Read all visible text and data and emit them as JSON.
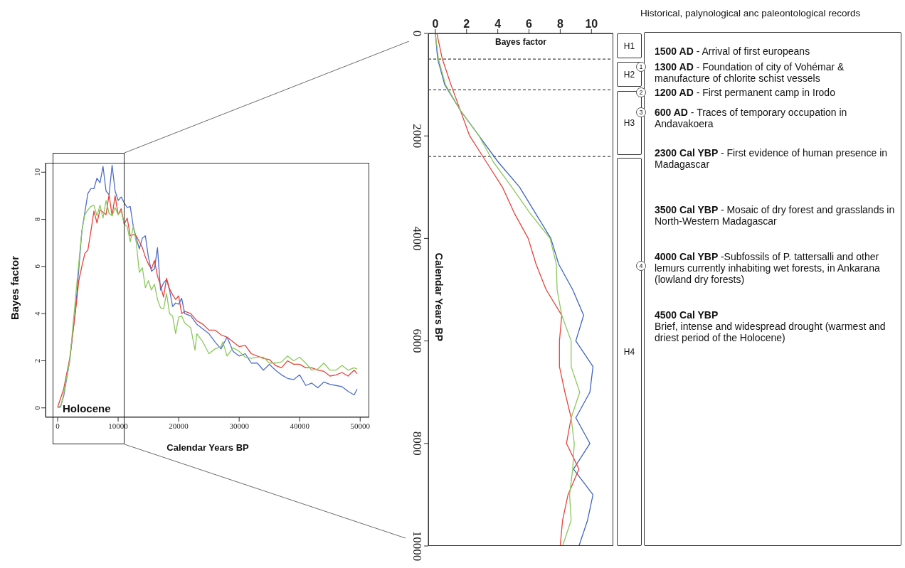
{
  "chart_data": [
    {
      "type": "line",
      "xlabel": "Calendar Years BP",
      "ylabel": "Bayes factor",
      "xlim": [
        -2000,
        51500
      ],
      "xticks": [
        0,
        10000,
        20000,
        30000,
        40000,
        50000
      ],
      "ylim": [
        -0.4,
        10.4
      ],
      "yticks": [
        0,
        2,
        4,
        6,
        8,
        10
      ],
      "grid": false,
      "annotations": [
        "Holocene"
      ],
      "series": [
        {
          "color": "#4f6ecb",
          "x": [
            0,
            500,
            1000,
            2000,
            3000,
            4000,
            4500,
            5000,
            5500,
            6000,
            6500,
            7000,
            7500,
            8000,
            8500,
            9000,
            9500,
            10000,
            10500,
            11000,
            11500,
            12000,
            12500,
            13000,
            13500,
            14000,
            14500,
            15000,
            15500,
            16000,
            16500,
            17000,
            17500,
            18000,
            18500,
            19000,
            19500,
            20000,
            20500,
            21000,
            22000,
            23000,
            24000,
            25000,
            26000,
            27000,
            28000,
            29000,
            30000,
            31000,
            32000,
            33000,
            34000,
            35000,
            36000,
            37000,
            38000,
            39000,
            40000,
            41000,
            42000,
            43000,
            44000,
            45000,
            46000,
            47000,
            48000,
            49000,
            49500
          ],
          "values": [
            0,
            0.08,
            0.5,
            2.0,
            4.3,
            7.5,
            8.3,
            9.1,
            9.3,
            9.3,
            9.75,
            9.55,
            10.25,
            9.2,
            9.05,
            10.3,
            9.2,
            8.8,
            8.95,
            8.7,
            8.5,
            8.55,
            7.7,
            7.2,
            6.75,
            7.2,
            7.3,
            6.4,
            5.8,
            5.9,
            6.8,
            5.0,
            5.3,
            5.45,
            5.0,
            4.3,
            4.45,
            4.4,
            4.65,
            4.0,
            3.9,
            3.55,
            3.35,
            3.15,
            2.8,
            2.5,
            3.0,
            2.4,
            2.2,
            2.3,
            1.9,
            1.9,
            1.6,
            1.85,
            1.6,
            1.4,
            1.25,
            1.2,
            1.4,
            0.95,
            1.05,
            0.85,
            1.1,
            1.0,
            0.95,
            0.9,
            0.7,
            0.55,
            0.8
          ]
        },
        {
          "color": "#e8433b",
          "x": [
            0,
            1000,
            2000,
            3000,
            3500,
            4000,
            4500,
            5000,
            5500,
            6000,
            6500,
            7000,
            7500,
            8000,
            8500,
            9000,
            9500,
            10000,
            10500,
            11000,
            11500,
            12000,
            12500,
            13000,
            13500,
            14000,
            14500,
            15000,
            15500,
            16000,
            16500,
            17000,
            17500,
            18000,
            18500,
            19000,
            19500,
            20000,
            20500,
            21000,
            22000,
            23000,
            24000,
            25000,
            26000,
            27000,
            28000,
            29000,
            30000,
            31000,
            32000,
            33000,
            34000,
            35000,
            36000,
            37000,
            38000,
            39000,
            40000,
            41000,
            42000,
            43000,
            44000,
            45000,
            46000,
            47000,
            48000,
            49000,
            49500
          ],
          "values": [
            0.03,
            0.8,
            2.1,
            4.2,
            5.4,
            6.0,
            6.55,
            6.7,
            7.5,
            8.35,
            7.85,
            8.4,
            8.3,
            8.2,
            9.05,
            8.15,
            9.0,
            8.2,
            8.45,
            7.8,
            8.05,
            7.3,
            7.35,
            7.3,
            7.05,
            6.8,
            6.4,
            6.1,
            5.9,
            6.25,
            5.6,
            5.2,
            4.7,
            5.5,
            5.05,
            4.8,
            4.6,
            4.75,
            4.0,
            4.1,
            4.0,
            3.7,
            3.55,
            3.3,
            3.3,
            3.1,
            3.0,
            2.8,
            2.6,
            2.65,
            2.3,
            2.2,
            2.1,
            2.05,
            1.8,
            1.7,
            2.0,
            1.85,
            1.85,
            1.7,
            1.7,
            1.6,
            1.55,
            1.35,
            1.4,
            1.5,
            1.35,
            1.6,
            1.45
          ]
        },
        {
          "color": "#8cc85e",
          "x": [
            0,
            500,
            1000,
            2000,
            3000,
            4000,
            4500,
            5000,
            5500,
            6000,
            6500,
            7000,
            7500,
            8000,
            8500,
            9000,
            9500,
            10000,
            10500,
            11000,
            11500,
            12000,
            12500,
            13000,
            13500,
            14000,
            14500,
            15000,
            15500,
            16000,
            16500,
            17000,
            17500,
            18000,
            18500,
            19000,
            19500,
            20000,
            20500,
            21000,
            22000,
            22700,
            23000,
            24000,
            25000,
            26000,
            27000,
            27300,
            28000,
            29000,
            30000,
            31000,
            32000,
            33000,
            34000,
            35000,
            36000,
            37000,
            38000,
            39000,
            40000,
            41000,
            42000,
            43000,
            44000,
            45000,
            46000,
            47000,
            48000,
            49000,
            49500
          ],
          "values": [
            0,
            0.03,
            0.6,
            2.0,
            4.8,
            7.5,
            8.2,
            8.4,
            8.55,
            8.6,
            8.15,
            8.6,
            8.05,
            8.8,
            8.25,
            8.15,
            8.5,
            8.2,
            8.35,
            7.8,
            7.7,
            7.05,
            7.7,
            7.0,
            5.75,
            5.95,
            5.1,
            5.4,
            5.0,
            5.25,
            4.6,
            4.25,
            4.2,
            4.85,
            4.0,
            3.9,
            3.15,
            3.85,
            3.9,
            3.6,
            3.4,
            2.45,
            3.15,
            2.8,
            2.3,
            2.5,
            2.6,
            2.8,
            2.2,
            2.55,
            2.4,
            2.15,
            2.1,
            2.15,
            2.15,
            1.9,
            1.9,
            1.95,
            2.2,
            2.0,
            2.15,
            1.9,
            1.6,
            1.65,
            1.9,
            1.6,
            1.6,
            1.8,
            1.6,
            1.7,
            1.65
          ]
        }
      ]
    },
    {
      "type": "line",
      "xlabel": "Bayes factor",
      "ylabel": "Calendar Years BP",
      "xlim": [
        -0.45,
        11.4
      ],
      "xticks": [
        0,
        2,
        4,
        6,
        8,
        10
      ],
      "ylim": [
        10000,
        0
      ],
      "yticks": [
        0,
        2000,
        4000,
        6000,
        8000,
        10000
      ],
      "grid": false,
      "ref_lines": [
        {
          "axis": "y",
          "value": 500,
          "line_style": "dashed"
        },
        {
          "axis": "y",
          "value": 1100,
          "line_style": "dashed"
        },
        {
          "axis": "y",
          "value": 2400,
          "line_style": "dashed"
        }
      ],
      "series": [
        {
          "color": "#3f64c0",
          "x": [
            0,
            0.15,
            0.6,
            1.6,
            2.8,
            4.0,
            5.4,
            6.4,
            7.4,
            7.9,
            8.8,
            9.5,
            9.0,
            10.1,
            9.9,
            9.0,
            9.9,
            8.85,
            10.1,
            9.75,
            9.2
          ],
          "values": [
            0,
            500,
            1000,
            1500,
            2000,
            2500,
            3000,
            3500,
            4000,
            4500,
            5000,
            5500,
            6000,
            6500,
            7000,
            7500,
            8000,
            8500,
            9000,
            9500,
            10000
          ]
        },
        {
          "color": "#e8433b",
          "x": [
            0.1,
            0.45,
            1.0,
            1.6,
            2.2,
            3.25,
            4.3,
            5.05,
            5.95,
            6.45,
            7.1,
            8.1,
            7.95,
            7.95,
            8.3,
            8.7,
            8.4,
            9.2,
            8.5,
            8.15,
            8.0
          ],
          "values": [
            0,
            500,
            1000,
            1500,
            2000,
            2500,
            3000,
            3500,
            4000,
            4500,
            5000,
            5500,
            6000,
            6500,
            7000,
            7500,
            8000,
            8500,
            9000,
            9500,
            10000
          ]
        },
        {
          "color": "#8cc85e",
          "x": [
            0,
            0.2,
            0.65,
            1.6,
            2.8,
            3.7,
            4.9,
            6.05,
            7.35,
            7.75,
            7.8,
            8.1,
            8.7,
            8.7,
            9.25,
            8.7,
            8.9,
            8.8,
            8.6,
            8.7,
            8.15
          ],
          "values": [
            0,
            500,
            1000,
            1500,
            2000,
            2500,
            3000,
            3500,
            4000,
            4500,
            5000,
            5500,
            6000,
            6500,
            7000,
            7500,
            8000,
            8500,
            9000,
            9500,
            10000
          ]
        }
      ]
    },
    {
      "type": "other",
      "title": "Historical, palynological anc paleontological records",
      "annotations": [
        "1500 AD - Arrival of first europeans",
        "1300 AD - Foundation of city of Vohémar & manufacture of chlorite schist vessels",
        "1200 AD - First permanent camp in Irodo",
        "600 AD - Traces of temporary occupation in Andavakoera",
        "2300 Cal YBP - First evidence of human presence in Madagascar",
        "3500 Cal YBP - Mosaic of dry forest and grasslands in North-Western Madagascar",
        "4000 Cal YBP -Subfossils of P. tattersalli and other lemurs currently inhabiting wet forests, in Ankarana (lowland dry forests)",
        "4500 Cal YBP\nBrief, intense and widespread drought (warmest and driest period of the Holocene)",
        "H1",
        "H2",
        "H3",
        "H4",
        "1",
        "2",
        "3",
        "4"
      ]
    }
  ]
}
